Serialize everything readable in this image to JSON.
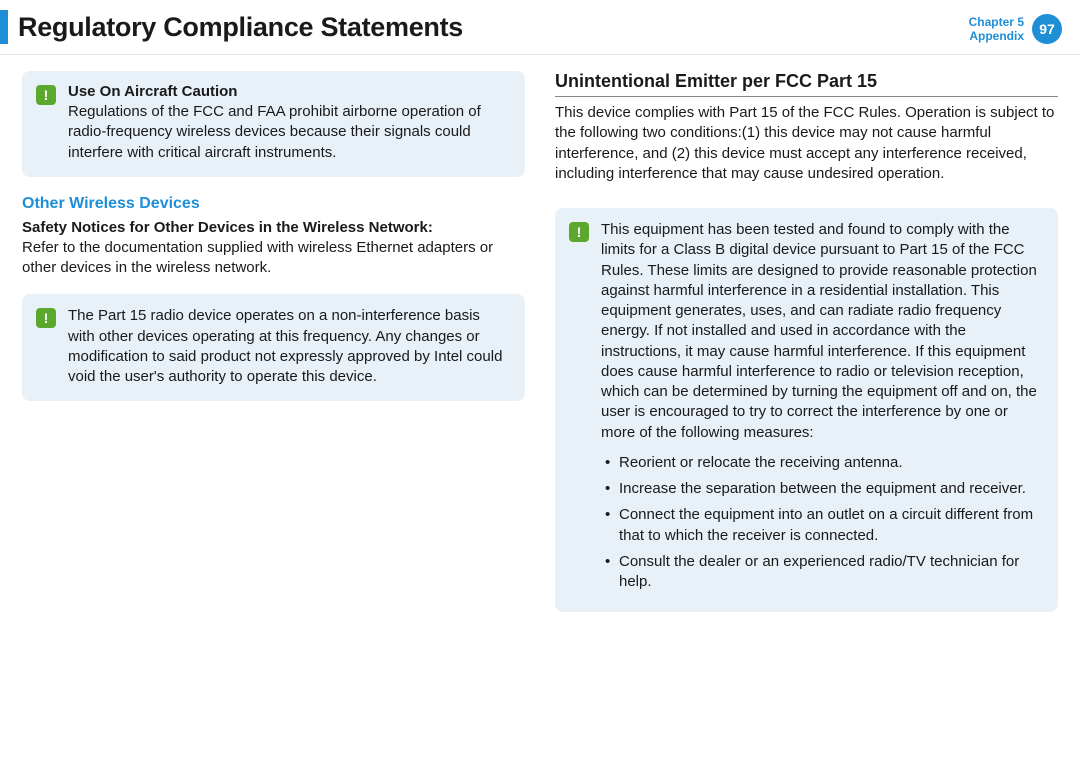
{
  "colors": {
    "accent": "#1e8fd6",
    "callout_bg": "#e8f0f8",
    "icon_bg": "#5ca82f",
    "text": "#1a1a1a",
    "white": "#ffffff"
  },
  "header": {
    "title": "Regulatory Compliance Statements",
    "chapter_line1": "Chapter 5",
    "chapter_line2": "Appendix",
    "page_number": "97"
  },
  "left_col": {
    "callout1": {
      "title": "Use On Aircraft Caution",
      "body": "Regulations of the FCC and FAA prohibit airborne operation of radio-frequency wireless devices because their signals could interfere with critical aircraft instruments."
    },
    "section1_heading": "Other Wireless Devices",
    "section1_sub": "Safety Notices for Other Devices in the Wireless Network:",
    "section1_body": "Refer to the documentation supplied with wireless Ethernet adapters or other devices in the wireless network.",
    "callout2": {
      "body": "The Part 15 radio device operates on a non-interference basis with other devices operating at this frequency. Any changes or modification to said product not expressly approved by Intel could void the user's authority to operate this device."
    }
  },
  "right_col": {
    "heading": "Unintentional Emitter per FCC Part 15",
    "para": "This device complies with Part 15 of the FCC Rules. Operation is subject to the following two conditions:(1) this device may not cause harmful interference, and (2) this device must accept any interference received, including interference that may cause undesired operation.",
    "callout": {
      "body": "This equipment has been tested and found to comply with the limits for a Class B digital device pursuant to Part 15 of the FCC Rules. These limits are designed to provide reasonable protection against harmful interference in a residential installation. This equipment generates, uses, and can radiate radio frequency energy. If not installed and used in accordance with the instructions, it may cause harmful interference. If this equipment does cause harmful interference to radio or television reception, which can be determined by turning the equipment off and on, the user is encouraged to try to correct the interference by one or more of the following measures:",
      "bullets": [
        "Reorient or relocate the receiving antenna.",
        "Increase the separation between the equipment and receiver.",
        "Connect the equipment into an outlet on a circuit different from that to which the receiver is connected.",
        "Consult the dealer or an experienced radio/TV technician for help."
      ]
    }
  }
}
